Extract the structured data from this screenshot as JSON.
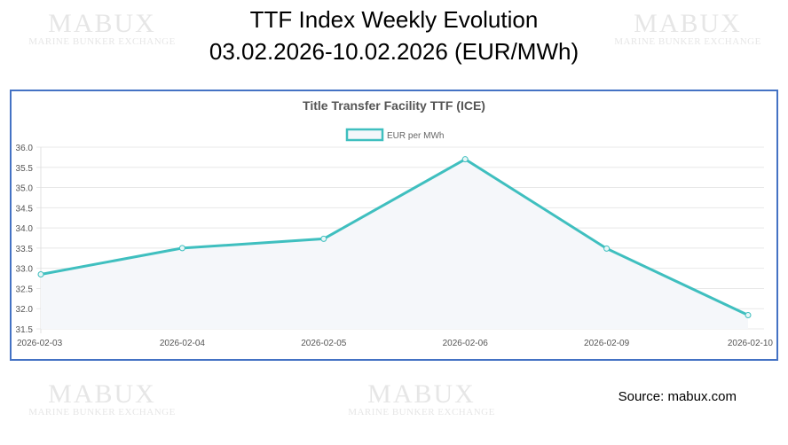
{
  "header": {
    "title_line1": "TTF Index Weekly Evolution",
    "title_line2": "03.02.2026-10.02.2026 (EUR/MWh)"
  },
  "watermark": {
    "text": "MABUX",
    "subtext": "MARINE BUNKER EXCHANGE"
  },
  "source": "Source: mabux.com",
  "chart_data": {
    "type": "line",
    "title": "Title Transfer Facility TTF (ICE)",
    "categories": [
      "2026-02-03",
      "2026-02-04",
      "2026-02-05",
      "2026-02-06",
      "2026-02-09",
      "2026-02-10"
    ],
    "series": [
      {
        "name": "EUR per MWh",
        "values": [
          32.85,
          33.5,
          33.73,
          35.7,
          33.49,
          31.84
        ],
        "color": "#3fbfbf"
      }
    ],
    "ylim": [
      31.5,
      36.0
    ],
    "yticks": [
      "36.0",
      "35.5",
      "35.0",
      "34.5",
      "34.0",
      "33.5",
      "33.0",
      "32.5",
      "32.0",
      "31.5"
    ],
    "grid": true,
    "legend": "top-center",
    "fill": "#f5f7fa"
  }
}
